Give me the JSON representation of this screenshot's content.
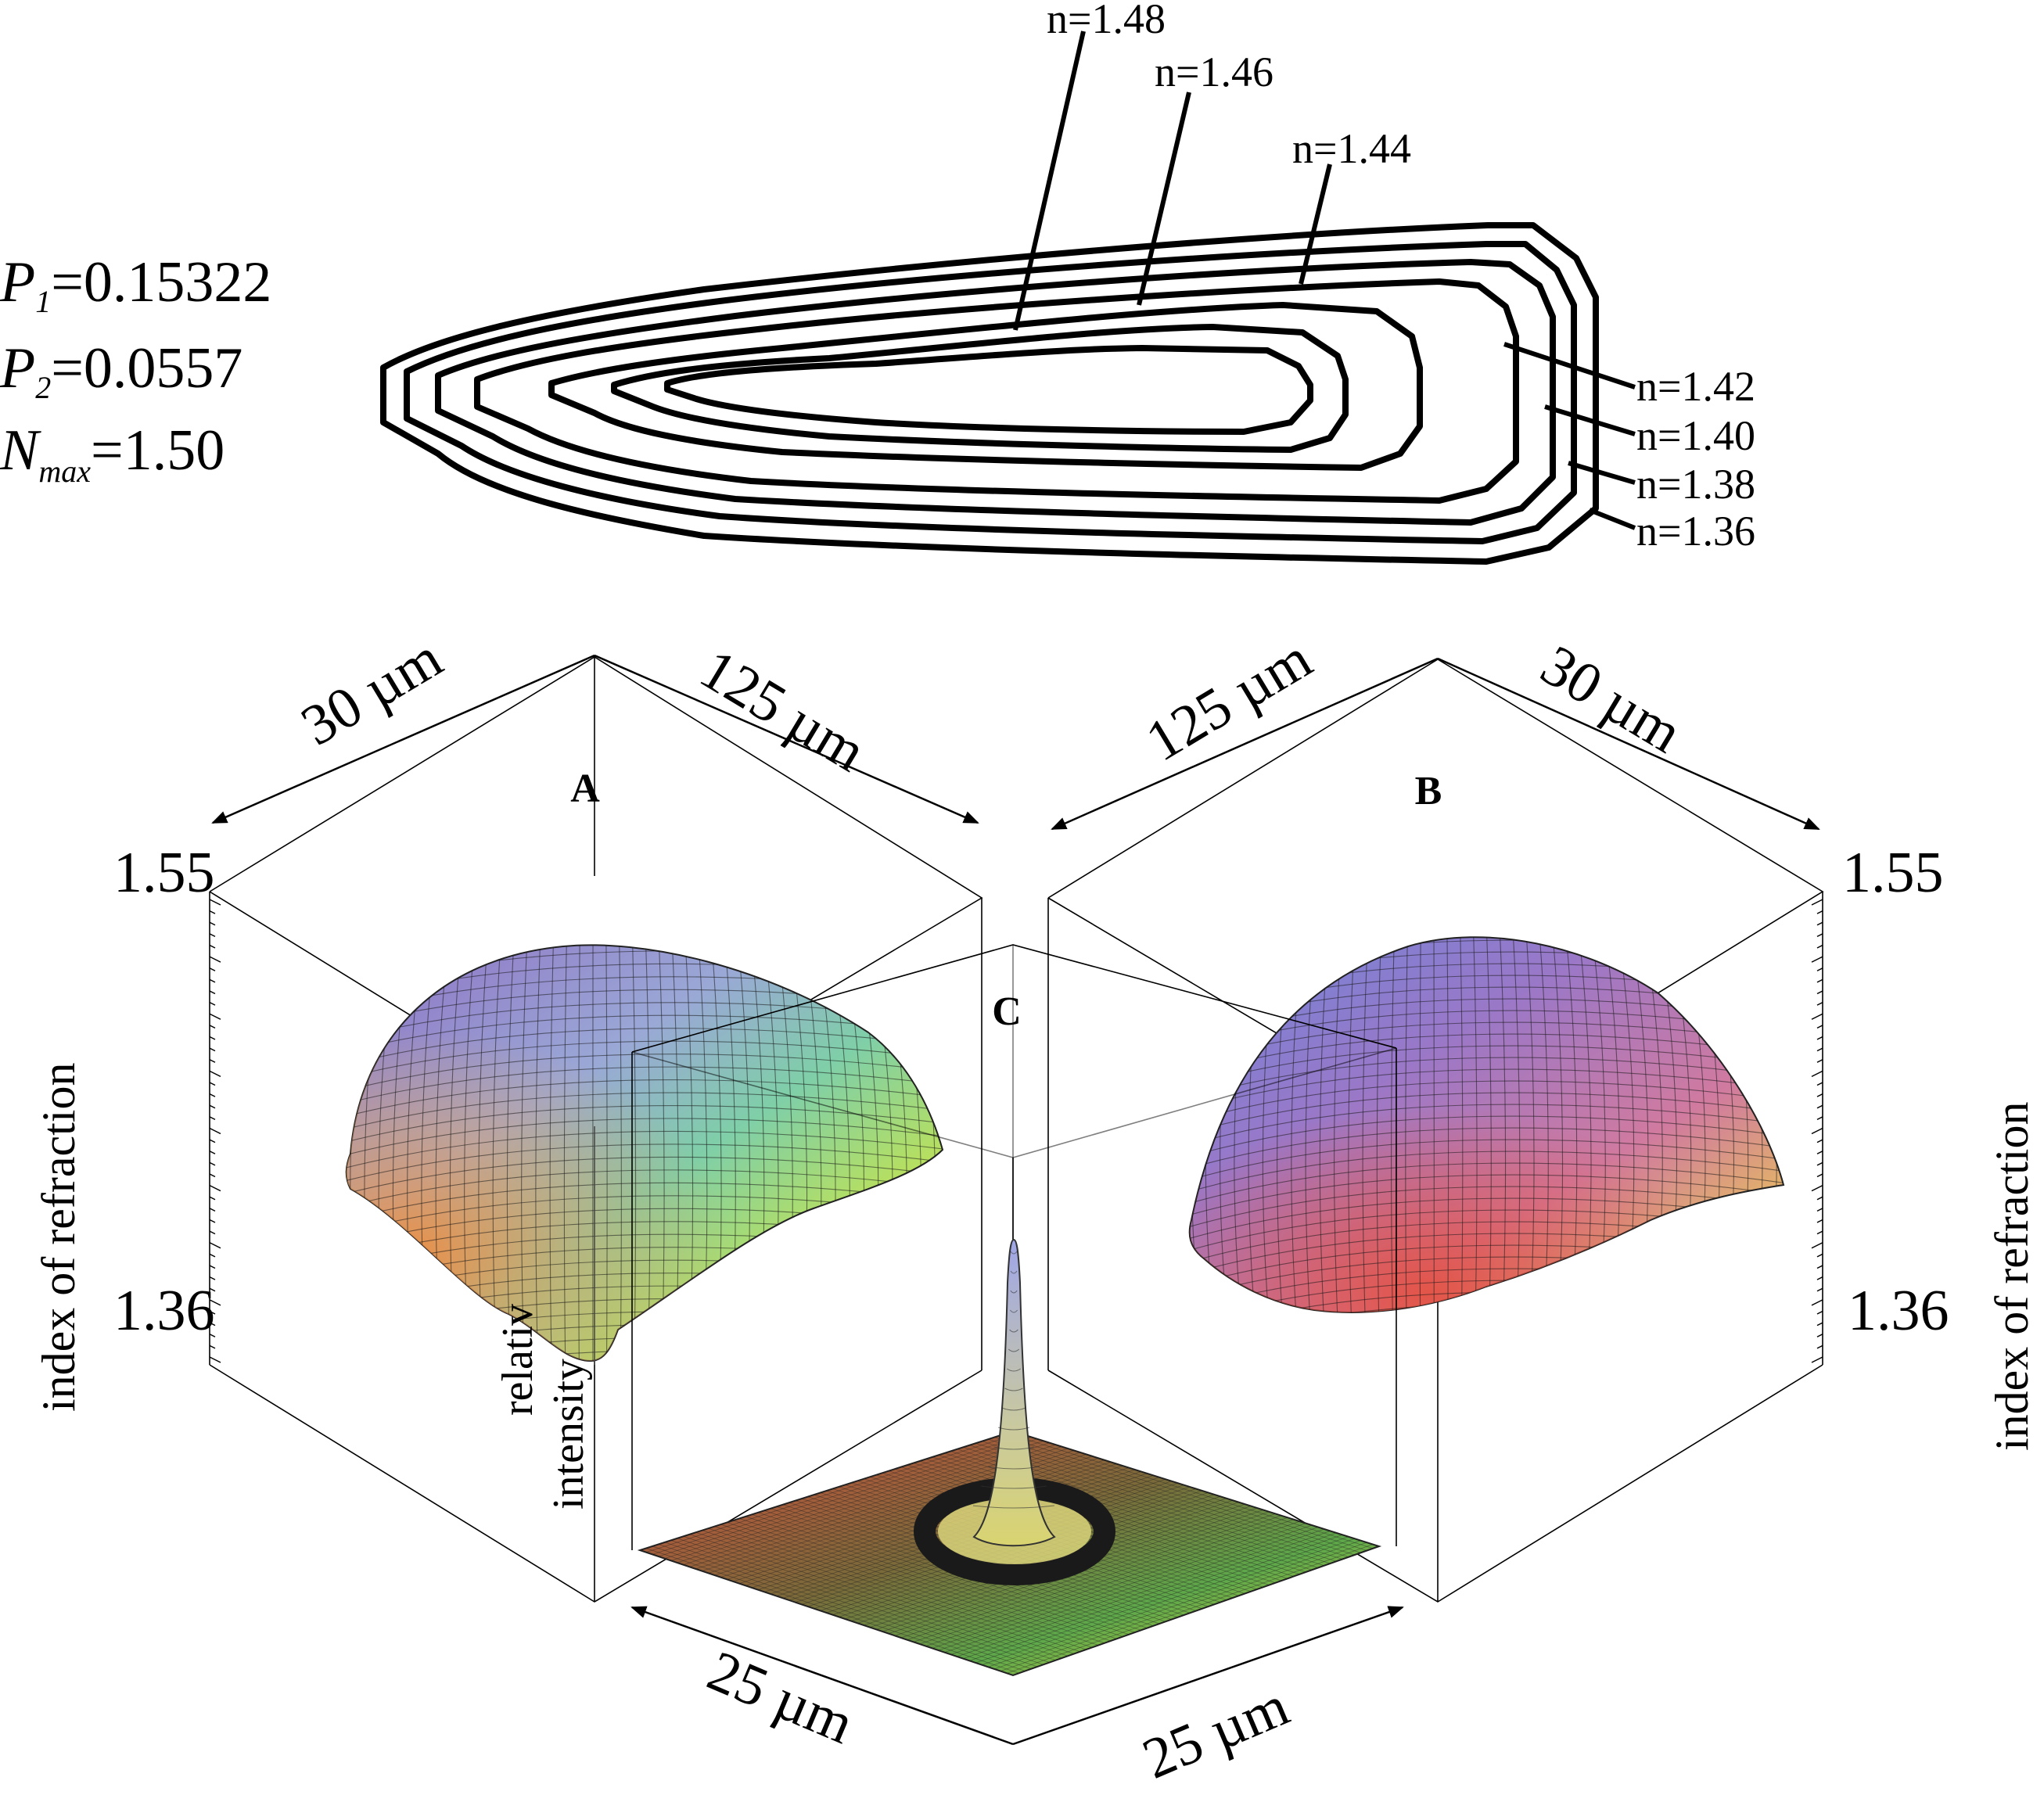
{
  "parameters": {
    "p1_symbol": "P",
    "p1_sub": "1",
    "p1_value": "=0.15322",
    "p2_symbol": "P",
    "p2_sub": "2",
    "p2_value": "=0.0557",
    "nmax_symbol": "N",
    "nmax_sub": "max",
    "nmax_value": "=1.50"
  },
  "contours": {
    "labels": [
      "n=1.48",
      "n=1.46",
      "n=1.44",
      "n=1.42",
      "n=1.40",
      "n=1.38",
      "n=1.36"
    ]
  },
  "panel_a": {
    "label": "A",
    "dim_left": "30 µm",
    "dim_right": "125 µm",
    "z_max": "1.55",
    "z_min": "1.36",
    "z_axis_label": "index of refraction"
  },
  "panel_b": {
    "label": "B",
    "dim_left": "125 µm",
    "dim_right": "30 µm",
    "z_max": "1.55",
    "z_min": "1.36",
    "z_axis_label": "index of refraction"
  },
  "panel_c": {
    "label": "C",
    "z_axis_label_1": "relativ",
    "z_axis_label_2": "intensity",
    "dim_left": "25 µm",
    "dim_right": "25 µm"
  },
  "colors": {
    "surface_purple": "#8e6fc4",
    "surface_blue": "#7fb4d9",
    "surface_green": "#8fd06a",
    "surface_yellow": "#f2ef3a",
    "surface_orange": "#f09040",
    "surface_red": "#e25a4a",
    "ring": "#1a1a1a"
  }
}
